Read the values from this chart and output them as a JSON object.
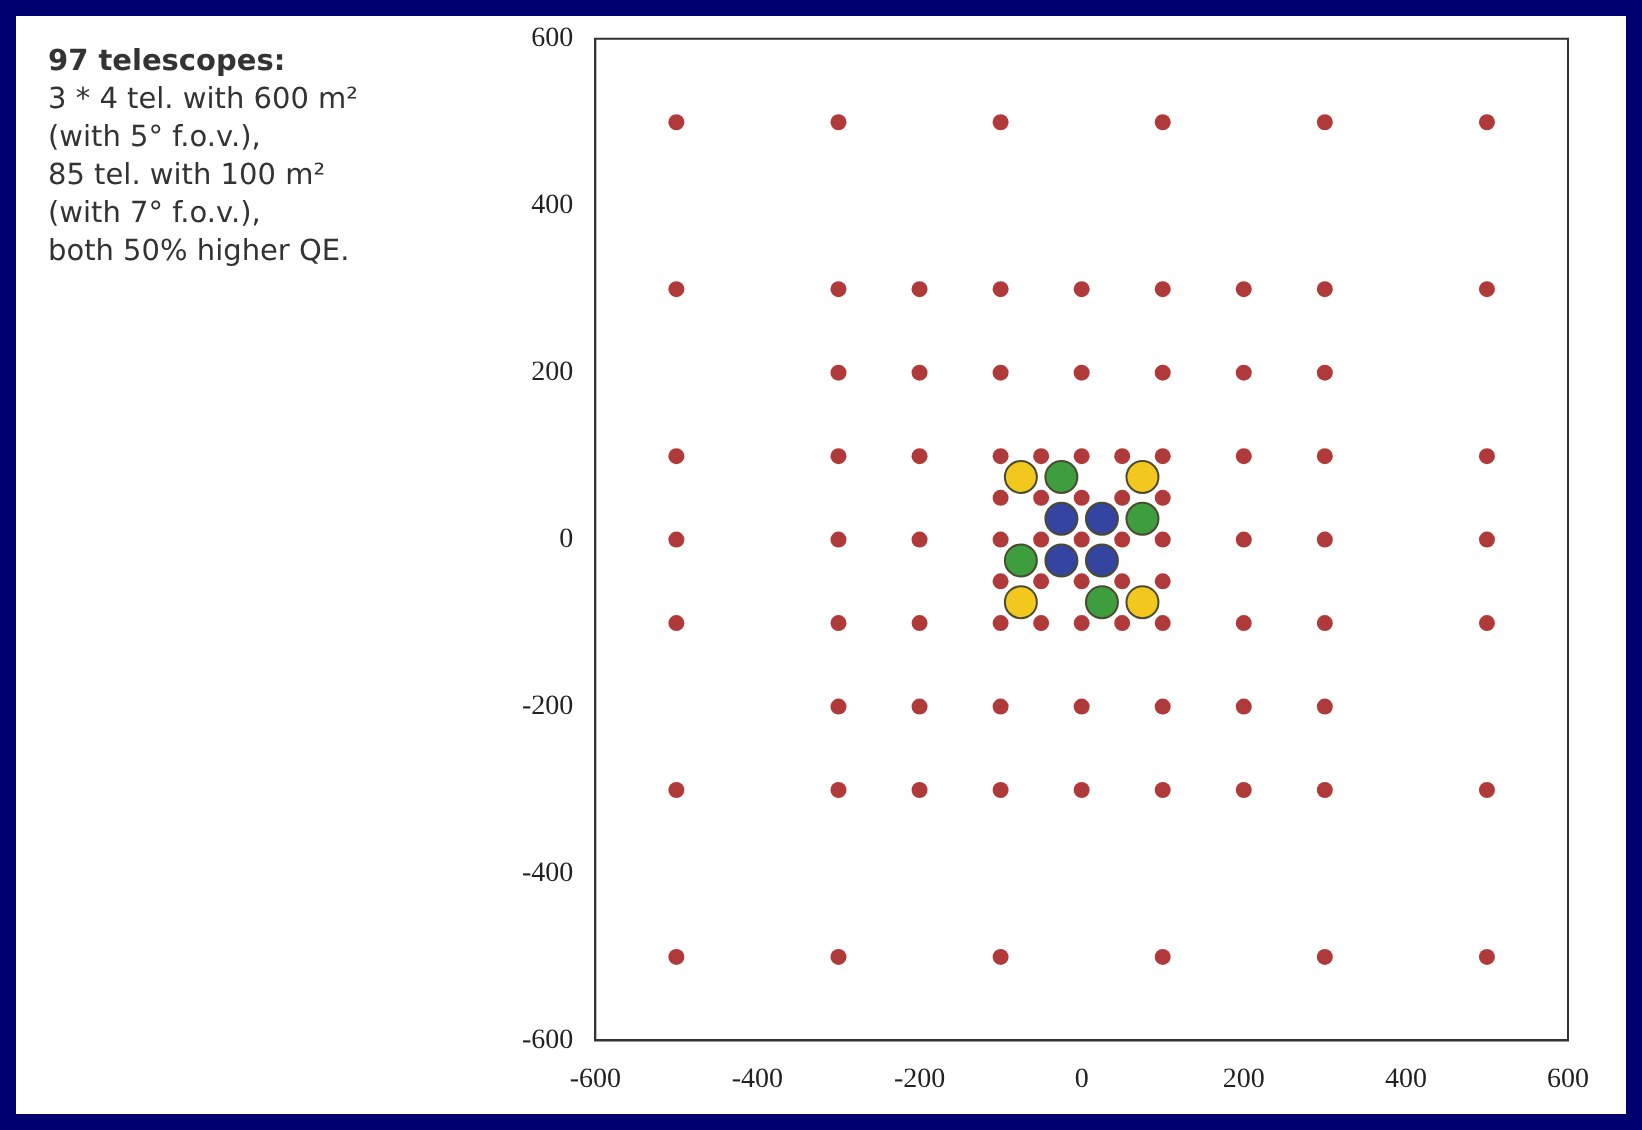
{
  "chart_data": {
    "type": "scatter",
    "xlim": [
      -600,
      600
    ],
    "ylim": [
      -600,
      600
    ],
    "xticks": [
      -600,
      -400,
      -200,
      0,
      200,
      400,
      600
    ],
    "yticks": [
      -600,
      -400,
      -200,
      0,
      200,
      400,
      600
    ],
    "grid": false,
    "legend": false,
    "marker": "circle",
    "annotations": [
      "97 telescopes:",
      "3 * 4 tel. with 600 m²",
      "(with 5° f.o.v.),",
      "85 tel. with 100 m²",
      "(with 7° f.o.v.),",
      "both 50% higher QE."
    ],
    "series": [
      {
        "color": "#b03a3a",
        "x": [
          -500,
          -300,
          -100,
          100,
          300,
          500,
          -500,
          -300,
          -200,
          -100,
          0,
          100,
          200,
          300,
          500,
          -300,
          -200,
          -100,
          0,
          100,
          200,
          300,
          -500,
          -300,
          -200,
          200,
          300,
          500,
          -500,
          -300,
          -200,
          200,
          300,
          500,
          -500,
          -300,
          -200,
          200,
          300,
          500,
          -300,
          -200,
          -100,
          0,
          100,
          200,
          300,
          -500,
          -300,
          -200,
          -100,
          0,
          100,
          200,
          300,
          500,
          -500,
          -300,
          -100,
          100,
          300,
          500,
          -100,
          -50,
          0,
          50,
          100,
          -100,
          -50,
          0,
          50,
          100,
          -100,
          -50,
          0,
          50,
          100,
          -100,
          -50,
          0,
          50,
          100,
          -100,
          -50,
          0,
          50,
          100
        ],
        "values": [
          500,
          500,
          500,
          500,
          500,
          500,
          300,
          300,
          300,
          300,
          300,
          300,
          300,
          300,
          300,
          200,
          200,
          200,
          200,
          200,
          200,
          200,
          100,
          100,
          100,
          100,
          100,
          100,
          0,
          0,
          0,
          0,
          0,
          0,
          -100,
          -100,
          -100,
          -100,
          -100,
          -100,
          -200,
          -200,
          -200,
          -200,
          -200,
          -200,
          -200,
          -300,
          -300,
          -300,
          -300,
          -300,
          -300,
          -300,
          -300,
          -300,
          -500,
          -500,
          -500,
          -500,
          -500,
          -500,
          100,
          100,
          100,
          100,
          100,
          50,
          50,
          50,
          50,
          50,
          0,
          0,
          0,
          0,
          0,
          -50,
          -50,
          -50,
          -50,
          -50,
          -100,
          -100,
          -100,
          -100,
          -100
        ]
      },
      {
        "color": "#f2c81e",
        "x": [
          -75,
          75,
          -75,
          75
        ],
        "values": [
          75,
          75,
          -75,
          -75
        ]
      },
      {
        "color": "#3e9e3e",
        "x": [
          -25,
          75,
          -75,
          25
        ],
        "values": [
          75,
          25,
          -25,
          -75
        ]
      },
      {
        "color": "#3444a0",
        "x": [
          -25,
          25,
          -25,
          25
        ],
        "values": [
          25,
          25,
          -25,
          -25
        ]
      }
    ]
  }
}
